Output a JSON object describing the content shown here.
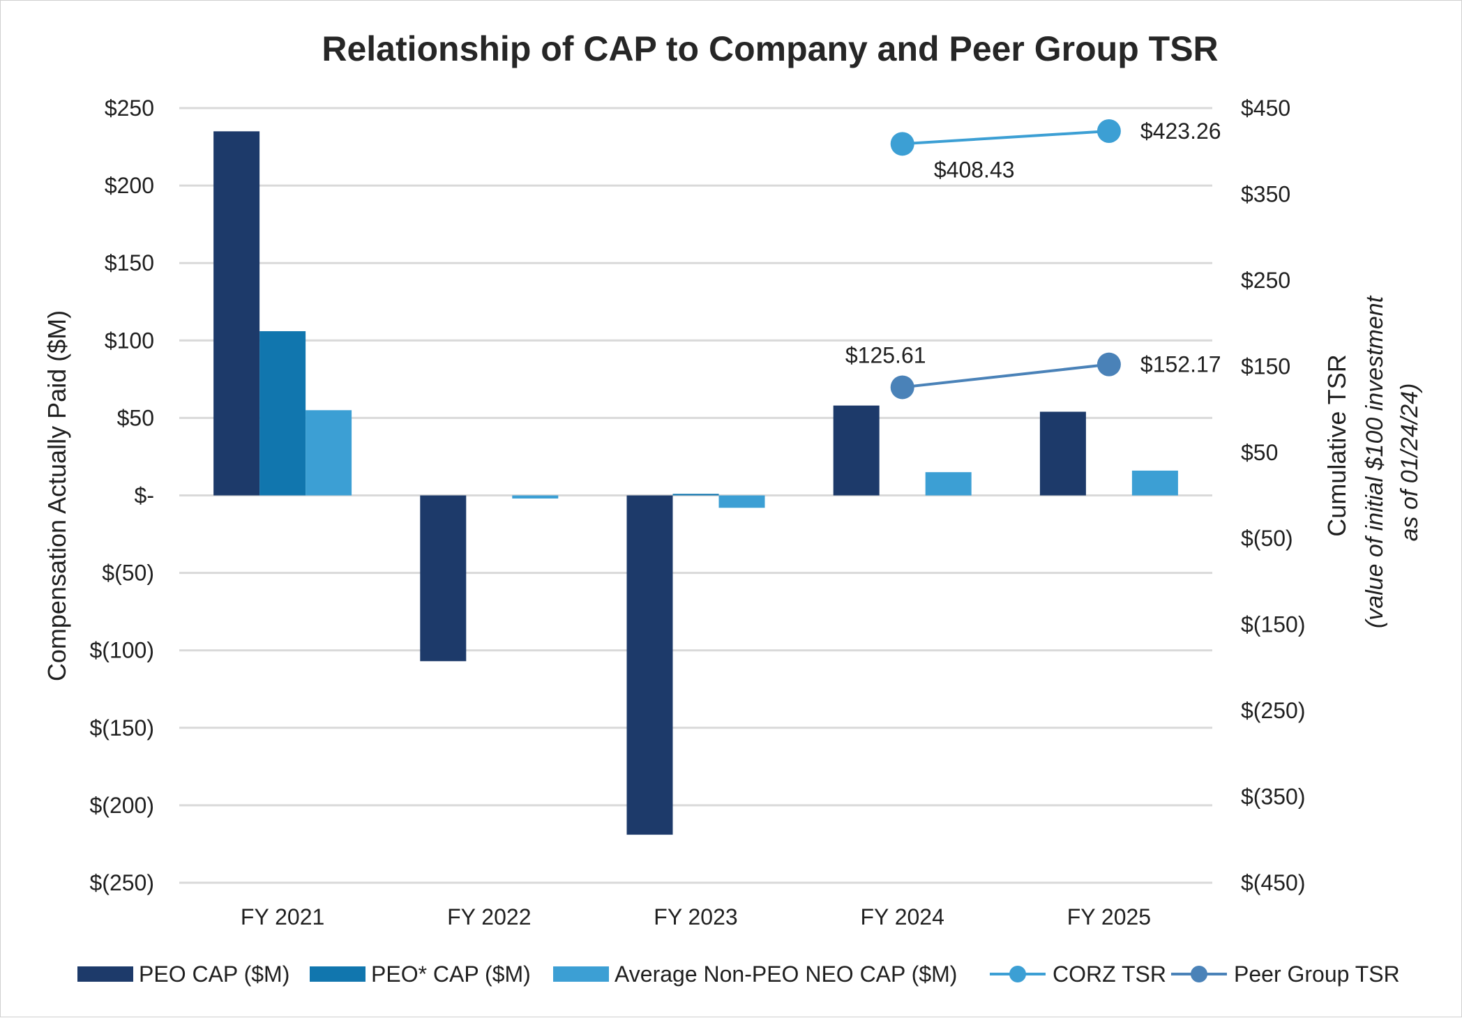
{
  "chart_data": {
    "type": "bar",
    "title": "Relationship of CAP to Company and Peer Group TSR",
    "categories": [
      "FY 2021",
      "FY 2022",
      "FY 2023",
      "FY 2024",
      "FY 2025"
    ],
    "ylabel": "Compensation Actually Paid ($M)",
    "ylim": [
      -250,
      250
    ],
    "y_ticks": [
      250,
      200,
      150,
      100,
      50,
      0,
      -50,
      -100,
      -150,
      -200,
      -250
    ],
    "y_tick_labels": [
      "$250",
      "$200",
      "$150",
      "$100",
      "$50",
      "$-",
      "$(50)",
      "$(100)",
      "$(150)",
      "$(200)",
      "$(250)"
    ],
    "y2label": "Cumulative TSR",
    "y2label_sub_line1": "(value of initial $100 investment",
    "y2label_sub_line2": "as of 01/24/24)",
    "y2lim": [
      -450,
      450
    ],
    "y2_ticks": [
      450,
      350,
      250,
      150,
      50,
      -50,
      -150,
      -250,
      -350,
      -450
    ],
    "y2_tick_labels": [
      "$450",
      "$350",
      "$250",
      "$150",
      "$50",
      "$(50)",
      "$(150)",
      "$(250)",
      "$(350)",
      "$(450)"
    ],
    "grid": true,
    "legend_position": "bottom",
    "bar_series": [
      {
        "name": "PEO CAP ($M)",
        "color": "#1d3a6a",
        "values": [
          235,
          -107,
          -219,
          58,
          54
        ]
      },
      {
        "name": "PEO* CAP ($M)",
        "color": "#1176ae",
        "values": [
          106,
          null,
          1,
          null,
          null
        ]
      },
      {
        "name": "Average Non-PEO NEO CAP ($M)",
        "color": "#3c9fd4",
        "values": [
          55,
          -2,
          -8,
          15,
          16
        ]
      }
    ],
    "line_series": [
      {
        "name": "CORZ TSR",
        "color": "#3c9fd4",
        "axis": "right",
        "values": [
          null,
          null,
          null,
          408.43,
          423.26
        ],
        "labels": [
          "",
          "",
          "",
          "$408.43",
          "$423.26"
        ]
      },
      {
        "name": "Peer Group TSR",
        "color": "#4a82b8",
        "axis": "right",
        "values": [
          null,
          null,
          null,
          125.61,
          152.17
        ],
        "labels": [
          "",
          "",
          "",
          "$125.61",
          "$152.17"
        ]
      }
    ]
  }
}
